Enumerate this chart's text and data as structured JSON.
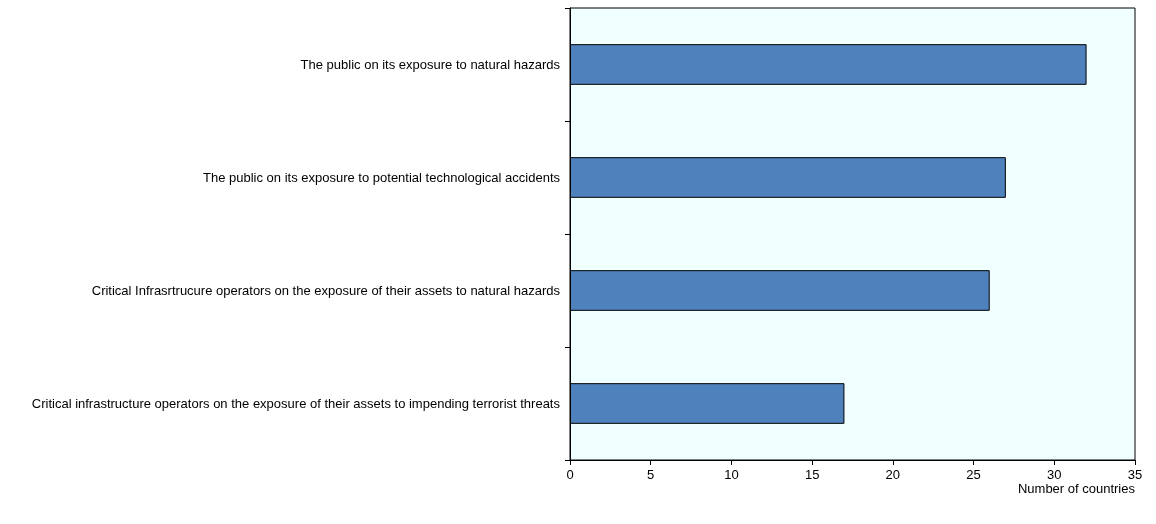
{
  "chart_data": {
    "type": "bar",
    "orientation": "horizontal",
    "categories": [
      "The public on its exposure to natural hazards",
      "The public on its exposure to potential technological accidents",
      "Critical Infrasrtrucure operators on the exposure of their assets to natural hazards",
      "Critical infrastructure operators on the exposure of their assets to impending terrorist threats"
    ],
    "values": [
      32,
      27,
      26,
      17
    ],
    "color": "#4f81bd",
    "xlabel": "Number of countries",
    "xlim": [
      0,
      35
    ],
    "xticks": [
      0,
      5,
      10,
      15,
      20,
      25,
      30,
      35
    ],
    "grid": false
  }
}
